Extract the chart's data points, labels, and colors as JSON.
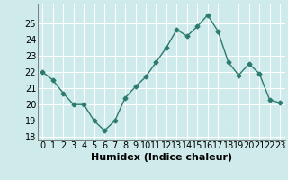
{
  "x": [
    0,
    1,
    2,
    3,
    4,
    5,
    6,
    7,
    8,
    9,
    10,
    11,
    12,
    13,
    14,
    15,
    16,
    17,
    18,
    19,
    20,
    21,
    22,
    23
  ],
  "y": [
    22.0,
    21.5,
    20.7,
    20.0,
    20.0,
    19.0,
    18.4,
    19.0,
    20.4,
    21.1,
    21.7,
    22.6,
    23.5,
    24.6,
    24.2,
    24.8,
    25.5,
    24.5,
    22.6,
    21.8,
    22.5,
    21.9,
    20.3,
    20.1
  ],
  "xlabel": "Humidex (Indice chaleur)",
  "ylim": [
    17.8,
    26.2
  ],
  "xlim": [
    -0.5,
    23.5
  ],
  "yticks": [
    18,
    19,
    20,
    21,
    22,
    23,
    24,
    25
  ],
  "xticks": [
    0,
    1,
    2,
    3,
    4,
    5,
    6,
    7,
    8,
    9,
    10,
    11,
    12,
    13,
    14,
    15,
    16,
    17,
    18,
    19,
    20,
    21,
    22,
    23
  ],
  "xtick_labels": [
    "0",
    "1",
    "2",
    "3",
    "4",
    "5",
    "6",
    "7",
    "8",
    "9",
    "10",
    "11",
    "12",
    "13",
    "14",
    "15",
    "16",
    "17",
    "18",
    "19",
    "20",
    "21",
    "22",
    "23"
  ],
  "line_color": "#2d7a6e",
  "marker": "D",
  "marker_size": 2.5,
  "line_width": 1.0,
  "bg_color": "#ceeaea",
  "grid_color": "#ffffff",
  "xlabel_fontsize": 8,
  "tick_fontsize": 7
}
